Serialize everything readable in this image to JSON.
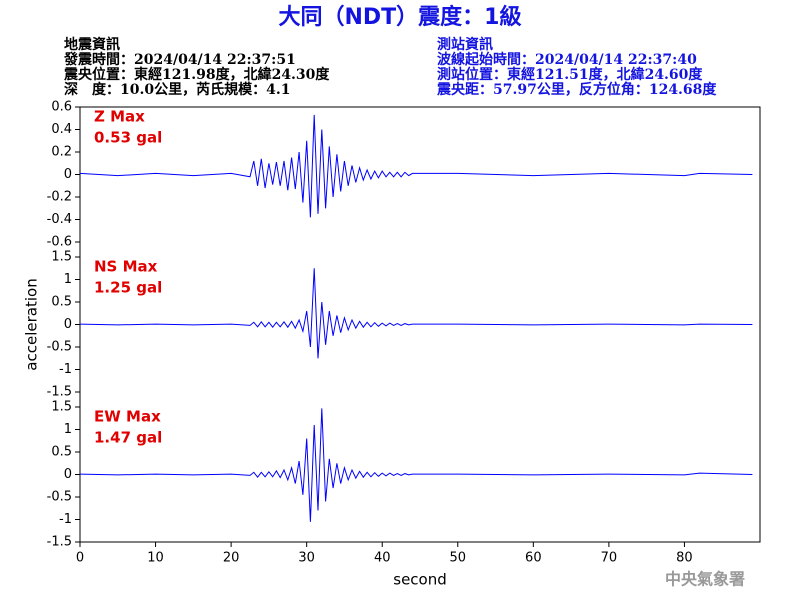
{
  "title": "大同（NDT）震度：1級",
  "title_color": "#1414e0",
  "left_info": [
    "地震資訊",
    "發震時間：2024/04/14 22:37:51",
    "震央位置：東經121.98度，北緯24.30度",
    "深　度：10.0公里，芮氏規模：4.1"
  ],
  "right_info": [
    "測站資訊",
    "波線起始時間：2024/04/14 22:37:40",
    "測站位置：東經121.51度，北緯24.60度",
    "震央距：57.97公里，反方位角：124.68度"
  ],
  "right_info_color": "#1414e0",
  "footer": "中央氣象署",
  "chart_data": [
    {
      "type": "line",
      "annotations": [
        "Z Max",
        "0.53 gal"
      ],
      "annotation_color": "#e00000",
      "x": [
        0,
        5,
        10,
        15,
        20,
        22.5,
        23,
        23.5,
        24,
        24.5,
        25,
        25.5,
        26,
        26.5,
        27,
        27.5,
        28,
        28.5,
        29,
        29.5,
        30,
        30.5,
        31,
        31.5,
        32,
        32.5,
        33,
        33.5,
        34,
        34.5,
        35,
        35.5,
        36,
        36.5,
        37,
        37.5,
        38,
        38.5,
        39,
        39.5,
        40,
        40.5,
        41,
        41.5,
        42,
        42.5,
        43,
        43.5,
        44,
        50,
        60,
        70,
        80,
        82,
        89
      ],
      "series": [
        {
          "name": "Z",
          "color": "#0000ff",
          "values": [
            0.01,
            -0.01,
            0.01,
            -0.01,
            0.01,
            -0.02,
            0.12,
            -0.1,
            0.14,
            -0.12,
            0.1,
            -0.09,
            0.11,
            -0.1,
            0.12,
            -0.14,
            0.15,
            -0.13,
            0.2,
            -0.25,
            0.3,
            -0.38,
            0.53,
            -0.35,
            0.4,
            -0.3,
            0.25,
            -0.2,
            0.18,
            -0.15,
            0.12,
            -0.1,
            0.08,
            -0.07,
            0.06,
            -0.05,
            0.04,
            -0.04,
            0.03,
            -0.03,
            0.03,
            -0.02,
            0.02,
            -0.02,
            0.02,
            -0.02,
            0.02,
            -0.01,
            0.01,
            0.01,
            -0.01,
            0.01,
            -0.01,
            0.01,
            0
          ]
        }
      ],
      "xlim": [
        0,
        90
      ],
      "ylim": [
        -0.6,
        0.6
      ],
      "yticks": [
        -0.6,
        -0.4,
        -0.2,
        0,
        0.2,
        0.4,
        0.6
      ]
    },
    {
      "type": "line",
      "annotations": [
        "NS Max",
        "1.25 gal"
      ],
      "annotation_color": "#e00000",
      "ylabel": "acceleration",
      "x": [
        0,
        5,
        10,
        15,
        20,
        22.5,
        23,
        23.5,
        24,
        24.5,
        25,
        25.5,
        26,
        26.5,
        27,
        27.5,
        28,
        28.5,
        29,
        29.5,
        30,
        30.5,
        31,
        31.5,
        32,
        32.5,
        33,
        33.5,
        34,
        34.5,
        35,
        35.5,
        36,
        36.5,
        37,
        37.5,
        38,
        38.5,
        39,
        39.5,
        40,
        40.5,
        41,
        41.5,
        42,
        42.5,
        43,
        43.5,
        44,
        50,
        60,
        70,
        80,
        82,
        89
      ],
      "series": [
        {
          "name": "NS",
          "color": "#0000ff",
          "values": [
            0.01,
            -0.01,
            0.01,
            -0.01,
            0.01,
            -0.02,
            0.05,
            -0.05,
            0.06,
            -0.05,
            0.05,
            -0.06,
            0.05,
            -0.05,
            0.06,
            -0.06,
            0.07,
            -0.08,
            0.1,
            -0.15,
            0.3,
            -0.5,
            1.25,
            -0.75,
            0.5,
            -0.45,
            0.3,
            -0.25,
            0.2,
            -0.18,
            0.15,
            -0.12,
            0.1,
            -0.08,
            0.07,
            -0.06,
            0.05,
            -0.05,
            0.04,
            -0.04,
            0.03,
            -0.03,
            0.03,
            -0.02,
            0.02,
            -0.02,
            0.02,
            -0.01,
            0.01,
            0.01,
            -0.01,
            0.01,
            -0.01,
            0.01,
            0
          ]
        }
      ],
      "xlim": [
        0,
        90
      ],
      "ylim": [
        -1.5,
        1.5
      ],
      "yticks": [
        -1.5,
        -1,
        -0.5,
        0,
        0.5,
        1,
        1.5
      ]
    },
    {
      "type": "line",
      "annotations": [
        "EW Max",
        "1.47 gal"
      ],
      "annotation_color": "#e00000",
      "xlabel": "second",
      "x": [
        0,
        5,
        10,
        15,
        20,
        22.5,
        23,
        23.5,
        24,
        24.5,
        25,
        25.5,
        26,
        26.5,
        27,
        27.5,
        28,
        28.5,
        29,
        29.5,
        30,
        30.5,
        31,
        31.5,
        32,
        32.5,
        33,
        33.5,
        34,
        34.5,
        35,
        35.5,
        36,
        36.5,
        37,
        37.5,
        38,
        38.5,
        39,
        39.5,
        40,
        40.5,
        41,
        41.5,
        42,
        42.5,
        43,
        43.5,
        44,
        50,
        60,
        70,
        80,
        82,
        89
      ],
      "series": [
        {
          "name": "EW",
          "color": "#0000ff",
          "values": [
            0.01,
            -0.01,
            0.01,
            -0.01,
            0.01,
            -0.02,
            0.05,
            -0.06,
            0.05,
            -0.05,
            0.06,
            -0.05,
            0.08,
            -0.07,
            0.1,
            -0.12,
            0.15,
            -0.2,
            0.3,
            -0.45,
            0.8,
            -1.05,
            1.1,
            -0.8,
            1.47,
            -0.6,
            0.35,
            -0.3,
            0.25,
            -0.2,
            0.15,
            -0.12,
            0.1,
            -0.08,
            0.07,
            -0.06,
            0.05,
            -0.05,
            0.04,
            -0.04,
            0.03,
            -0.03,
            0.03,
            -0.02,
            0.02,
            -0.02,
            0.02,
            -0.01,
            0.01,
            0.01,
            -0.01,
            0.01,
            -0.01,
            0.03,
            0
          ]
        }
      ],
      "xlim": [
        0,
        90
      ],
      "ylim": [
        -1.5,
        1.5
      ],
      "yticks": [
        -1.5,
        -1,
        -0.5,
        0,
        0.5,
        1,
        1.5
      ],
      "xticks": [
        0,
        10,
        20,
        30,
        40,
        50,
        60,
        70,
        80
      ]
    }
  ]
}
